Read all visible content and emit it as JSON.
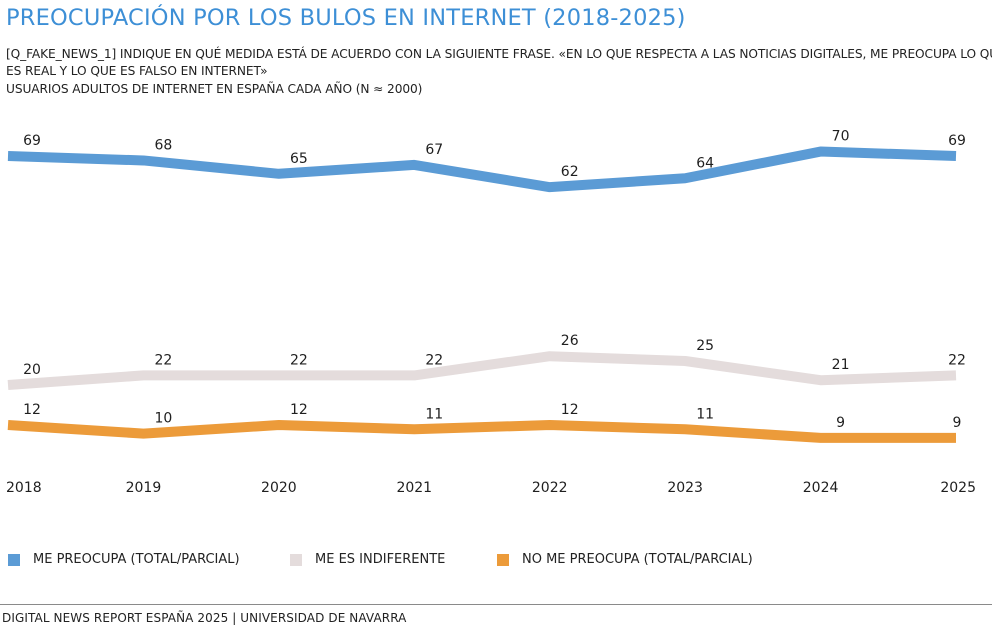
{
  "header": {
    "title": "PREOCUPACIÓN POR LOS BULOS EN INTERNET (2018-2025)",
    "question_line1": "[Q_FAKE_NEWS_1] INDIQUE EN QUÉ MEDIDA ESTÁ DE ACUERDO CON LA SIGUIENTE FRASE. «EN LO QUE RESPECTA A LAS NOTICIAS DIGITALES, ME PREOCUPA LO QUE",
    "question_line2": "ES REAL Y LO QUE ES FALSO EN INTERNET»",
    "sample_note": "USUARIOS ADULTOS DE INTERNET EN ESPAÑA CADA AÑO (N ≈ 2000)"
  },
  "chart_data": {
    "type": "line",
    "x": [
      "2018",
      "2019",
      "2020",
      "2021",
      "2022",
      "2023",
      "2024",
      "2025"
    ],
    "series": [
      {
        "name": "ME PREOCUPA (TOTAL/PARCIAL)",
        "color": "#5b9bd5",
        "values": [
          69,
          68,
          65,
          67,
          62,
          64,
          70,
          69
        ]
      },
      {
        "name": "ME ES INDIFERENTE",
        "color": "#e4dcdc",
        "values": [
          20,
          22,
          22,
          22,
          26,
          25,
          21,
          22
        ]
      },
      {
        "name": "NO ME PREOCUPA (TOTAL/PARCIAL)",
        "color": "#ec9b3a",
        "values": [
          12,
          10,
          12,
          11,
          12,
          11,
          9,
          9
        ]
      }
    ],
    "ylim": [
      0,
      100
    ],
    "grid": false,
    "legend_position": "bottom"
  },
  "footer": {
    "source": "DIGITAL NEWS REPORT ESPAÑA 2025 | UNIVERSIDAD DE NAVARRA"
  }
}
